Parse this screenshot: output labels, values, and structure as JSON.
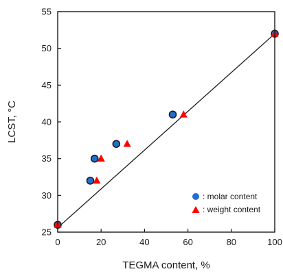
{
  "chart_data": {
    "type": "scatter",
    "title": "",
    "xlabel": "TEGMA content, %",
    "ylabel": "LCST, °C",
    "xlim": [
      0,
      100
    ],
    "ylim": [
      25,
      55
    ],
    "xticks": [
      0,
      20,
      40,
      60,
      80,
      100
    ],
    "yticks": [
      25,
      30,
      35,
      40,
      45,
      50,
      55
    ],
    "grid": false,
    "legend_position": "bottom-right",
    "series": [
      {
        "name": ": molar content",
        "marker": "circle",
        "color": "#1f6fd1",
        "edge_color": "#1a1a1a",
        "x": [
          0,
          15,
          17,
          27,
          53,
          100
        ],
        "y": [
          26,
          32,
          35,
          37,
          41,
          52
        ]
      },
      {
        "name": ": weight content",
        "marker": "triangle",
        "color": "#ff0000",
        "x": [
          0,
          18,
          20,
          32,
          58,
          100
        ],
        "y": [
          26,
          32,
          35,
          37,
          41,
          52
        ]
      }
    ],
    "fit_line": {
      "x": [
        0,
        100
      ],
      "y": [
        25.6,
        52
      ],
      "color": "#1a1a1a"
    }
  }
}
